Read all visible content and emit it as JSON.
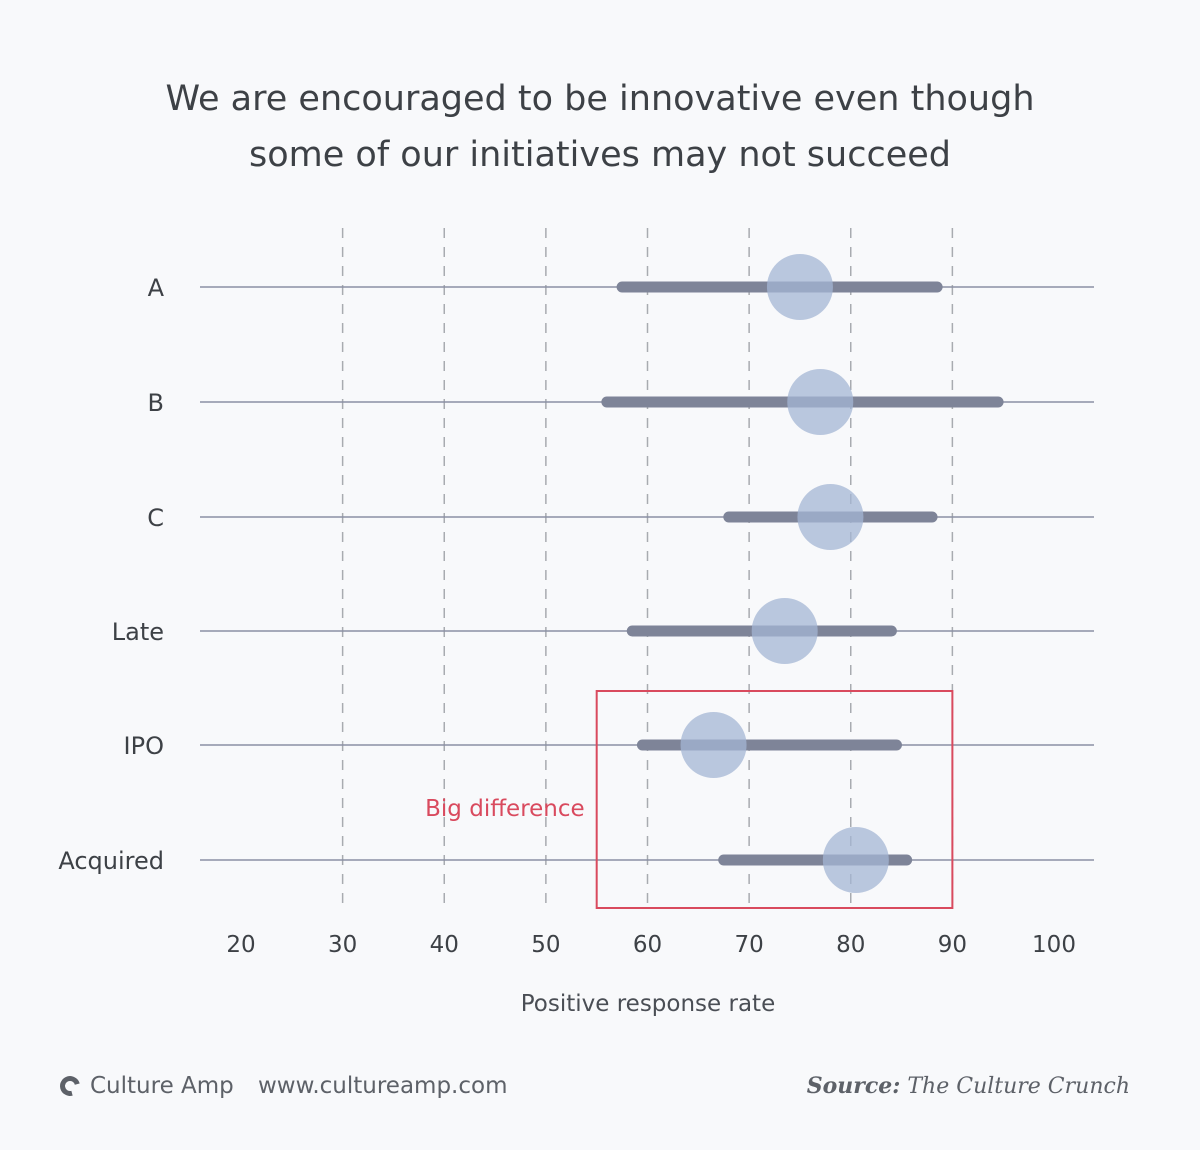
{
  "chart_data": {
    "type": "dot-range",
    "title_lines": [
      "We are encouraged to be innovative even though",
      "some of our initiatives may not succeed"
    ],
    "xlabel": "Positive response rate",
    "xlim": [
      15,
      105
    ],
    "xticks": [
      20,
      30,
      40,
      50,
      60,
      70,
      80,
      90,
      100
    ],
    "grid": "vertical dashed at 30-90",
    "categories": [
      "A",
      "B",
      "C",
      "Late",
      "IPO",
      "Acquired"
    ],
    "series": [
      {
        "category": "A",
        "low": 57.5,
        "high": 88.5,
        "value": 75
      },
      {
        "category": "B",
        "low": 56,
        "high": 94.5,
        "value": 77
      },
      {
        "category": "C",
        "low": 68,
        "high": 88,
        "value": 78
      },
      {
        "category": "Late",
        "low": 58.5,
        "high": 84,
        "value": 73.5
      },
      {
        "category": "IPO",
        "low": 59.5,
        "high": 84.5,
        "value": 66.5
      },
      {
        "category": "Acquired",
        "low": 67.5,
        "high": 85.5,
        "value": 80.5
      }
    ],
    "annotation": {
      "text": "Big difference",
      "highlight_x_range": [
        55,
        90
      ],
      "highlight_categories": [
        "IPO",
        "Acquired"
      ]
    },
    "colors": {
      "range": "#7e8498",
      "dot": "#a4b6d4",
      "row_line": "#8a90a4",
      "grid": "#a8abb0",
      "annotation": "#d94a5e"
    }
  },
  "footer": {
    "brand": "Culture Amp",
    "website": "www.cultureamp.com",
    "source_label": "Source:",
    "source_text": "The Culture Crunch"
  }
}
